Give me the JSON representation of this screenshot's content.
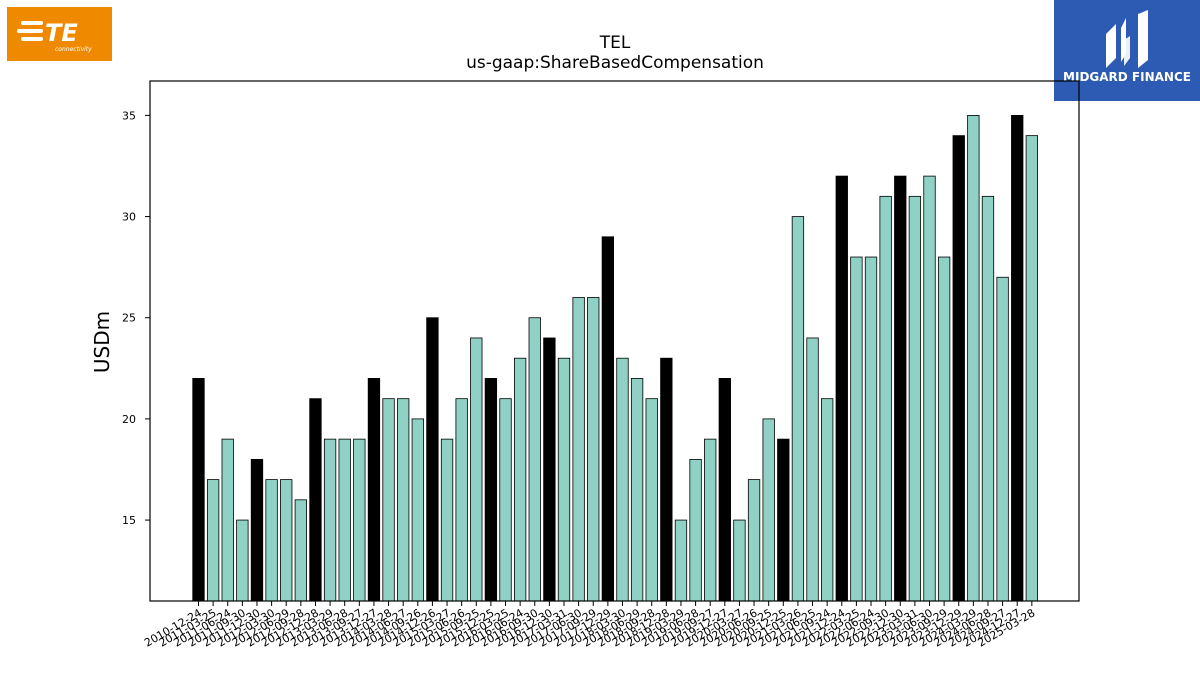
{
  "logos": {
    "left": {
      "text": "TE",
      "subtext": "connectivity",
      "color": "#ef8a00"
    },
    "right": {
      "text": "MIDGARD FINANCE",
      "color": "#2d5ab2"
    }
  },
  "chart_data": {
    "type": "bar",
    "title": "TEL",
    "subtitle": "us-gaap:ShareBasedCompensation",
    "xlabel": "",
    "ylabel": "USDm",
    "ylim": [
      11,
      36.7
    ],
    "yticks": [
      15,
      20,
      25,
      30,
      35
    ],
    "grid": false,
    "colors": {
      "annual": "#000000",
      "quarter": "#8fd1c4"
    },
    "categories": [
      "2010-12-24",
      "2011-03-25",
      "2011-06-24",
      "2011-09-30",
      "2011-12-30",
      "2012-03-30",
      "2012-06-29",
      "2012-09-28",
      "2012-12-28",
      "2013-03-29",
      "2013-06-28",
      "2013-09-27",
      "2013-12-27",
      "2014-03-28",
      "2014-06-27",
      "2014-09-26",
      "2014-12-26",
      "2015-03-27",
      "2015-06-26",
      "2015-09-25",
      "2015-12-25",
      "2016-03-25",
      "2016-06-24",
      "2016-09-30",
      "2016-12-30",
      "2017-03-31",
      "2017-06-30",
      "2017-09-29",
      "2017-12-29",
      "2018-03-30",
      "2018-06-29",
      "2018-09-28",
      "2018-12-28",
      "2019-03-29",
      "2019-06-28",
      "2019-09-27",
      "2019-12-27",
      "2020-03-27",
      "2020-06-26",
      "2020-09-25",
      "2020-12-25",
      "2021-03-26",
      "2021-06-25",
      "2021-09-24",
      "2021-12-24",
      "2022-03-25",
      "2022-06-24",
      "2022-09-30",
      "2022-12-30",
      "2023-03-31",
      "2023-06-30",
      "2023-09-29",
      "2023-12-29",
      "2024-03-29",
      "2024-06-28",
      "2024-09-27",
      "2024-12-27",
      "2025-03-28"
    ],
    "series": [
      {
        "values": [
          22,
          17,
          19,
          15,
          18,
          17,
          17,
          16,
          21,
          19,
          19,
          19,
          22,
          21,
          21,
          20,
          25,
          19,
          21,
          24,
          22,
          21,
          23,
          25,
          24,
          23,
          26,
          26,
          29,
          23,
          22,
          21,
          23,
          15,
          18,
          19,
          22,
          15,
          17,
          20,
          19,
          30,
          24,
          21,
          32,
          28,
          28,
          31,
          32,
          31,
          32,
          28,
          34,
          35,
          31,
          27,
          35,
          34
        ]
      }
    ],
    "highlight_index": [
      0,
      4,
      8,
      12,
      16,
      20,
      24,
      28,
      32,
      36,
      40,
      44,
      48,
      52,
      56
    ]
  }
}
